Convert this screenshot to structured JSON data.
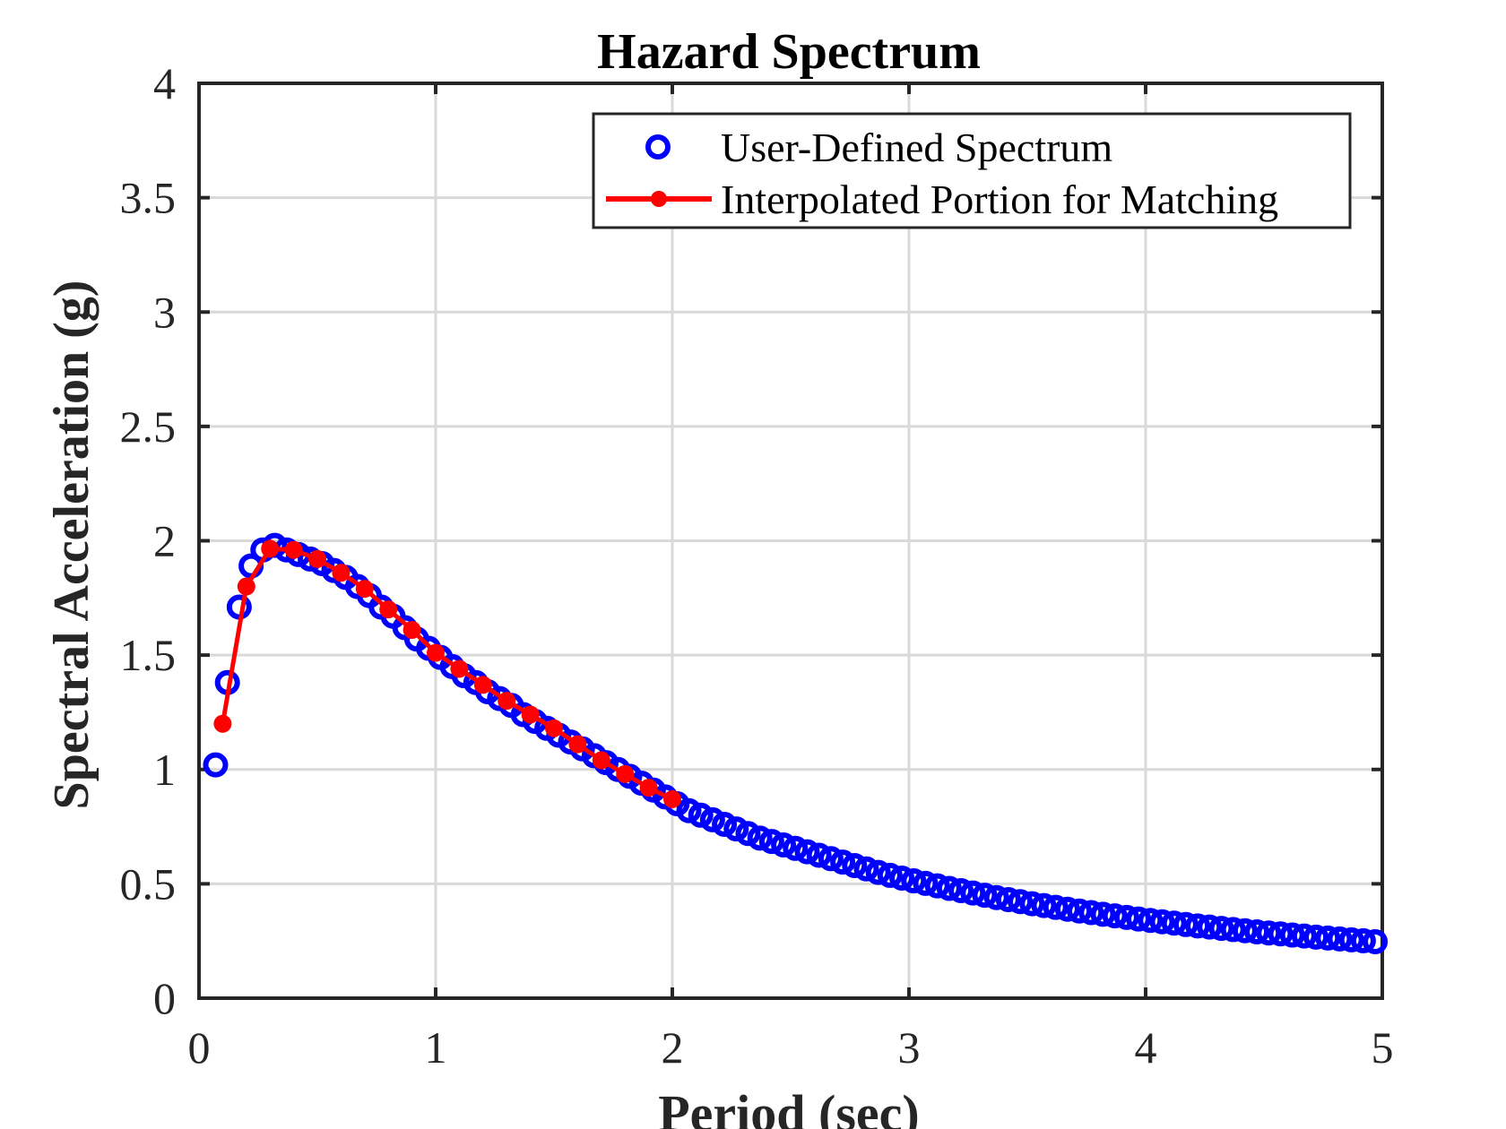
{
  "chart_data": {
    "type": "scatter",
    "title": "Hazard Spectrum",
    "xlabel": "Period (sec)",
    "ylabel": "Spectral Acceleration (g)",
    "xlim": [
      0,
      5
    ],
    "ylim": [
      0,
      4
    ],
    "xticks": [
      0,
      1,
      2,
      3,
      4,
      5
    ],
    "xtick_labels": [
      "0",
      "1",
      "2",
      "3",
      "4",
      "5"
    ],
    "yticks": [
      0,
      0.5,
      1,
      1.5,
      2,
      2.5,
      3,
      3.5,
      4
    ],
    "ytick_labels": [
      "0",
      "0.5",
      "1",
      "1.5",
      "2",
      "2.5",
      "3",
      "3.5",
      "4"
    ],
    "grid": true,
    "legend_position": "top-right",
    "series": [
      {
        "name": "User-Defined Spectrum",
        "style": "markers",
        "marker": "open-circle",
        "color": "#0000ff",
        "x": [
          0.07,
          0.12,
          0.17,
          0.22,
          0.27,
          0.32,
          0.37,
          0.42,
          0.47,
          0.52,
          0.57,
          0.62,
          0.67,
          0.72,
          0.77,
          0.82,
          0.87,
          0.92,
          0.97,
          1.02,
          1.07,
          1.12,
          1.17,
          1.22,
          1.27,
          1.32,
          1.37,
          1.42,
          1.47,
          1.52,
          1.57,
          1.62,
          1.67,
          1.72,
          1.77,
          1.82,
          1.87,
          1.92,
          1.97,
          2.02,
          2.07,
          2.12,
          2.17,
          2.22,
          2.27,
          2.32,
          2.37,
          2.42,
          2.47,
          2.52,
          2.57,
          2.62,
          2.67,
          2.72,
          2.77,
          2.82,
          2.87,
          2.92,
          2.97,
          3.02,
          3.07,
          3.12,
          3.17,
          3.22,
          3.27,
          3.32,
          3.37,
          3.42,
          3.47,
          3.52,
          3.57,
          3.62,
          3.67,
          3.72,
          3.77,
          3.82,
          3.87,
          3.92,
          3.97,
          4.02,
          4.07,
          4.12,
          4.17,
          4.22,
          4.27,
          4.32,
          4.37,
          4.42,
          4.47,
          4.52,
          4.57,
          4.62,
          4.67,
          4.72,
          4.77,
          4.82,
          4.87,
          4.92,
          4.97
        ],
        "y": [
          1.02,
          1.38,
          1.71,
          1.89,
          1.96,
          1.98,
          1.96,
          1.94,
          1.92,
          1.9,
          1.87,
          1.84,
          1.8,
          1.76,
          1.71,
          1.67,
          1.62,
          1.57,
          1.53,
          1.49,
          1.45,
          1.41,
          1.38,
          1.34,
          1.31,
          1.28,
          1.24,
          1.21,
          1.18,
          1.15,
          1.12,
          1.09,
          1.06,
          1.03,
          1.0,
          0.97,
          0.94,
          0.91,
          0.88,
          0.85,
          0.82,
          0.8,
          0.78,
          0.76,
          0.74,
          0.72,
          0.7,
          0.685,
          0.67,
          0.655,
          0.64,
          0.625,
          0.61,
          0.595,
          0.58,
          0.565,
          0.55,
          0.537,
          0.525,
          0.513,
          0.502,
          0.491,
          0.48,
          0.47,
          0.46,
          0.45,
          0.44,
          0.431,
          0.422,
          0.413,
          0.405,
          0.397,
          0.389,
          0.381,
          0.374,
          0.367,
          0.36,
          0.353,
          0.346,
          0.34,
          0.334,
          0.328,
          0.322,
          0.316,
          0.311,
          0.305,
          0.3,
          0.295,
          0.29,
          0.285,
          0.281,
          0.276,
          0.272,
          0.267,
          0.263,
          0.259,
          0.255,
          0.251,
          0.247
        ]
      },
      {
        "name": "Interpolated Portion for Matching",
        "style": "line-markers",
        "marker": "filled-dot",
        "color": "#ff0000",
        "x": [
          0.1,
          0.2,
          0.3,
          0.4,
          0.5,
          0.6,
          0.7,
          0.8,
          0.9,
          1.0,
          1.1,
          1.2,
          1.3,
          1.4,
          1.5,
          1.6,
          1.7,
          1.8,
          1.9,
          2.0
        ],
        "y": [
          1.2,
          1.8,
          1.965,
          1.96,
          1.92,
          1.86,
          1.79,
          1.7,
          1.61,
          1.51,
          1.44,
          1.37,
          1.3,
          1.24,
          1.18,
          1.11,
          1.04,
          0.98,
          0.92,
          0.87
        ]
      }
    ]
  }
}
